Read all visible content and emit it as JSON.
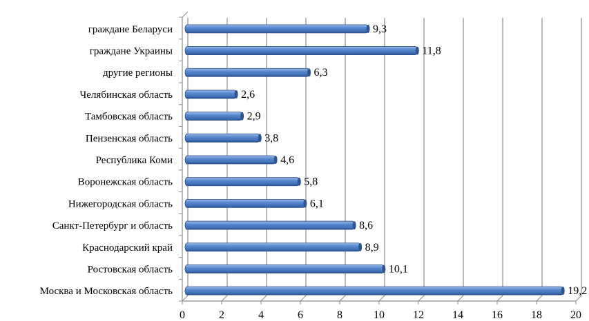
{
  "chart_data": {
    "type": "bar",
    "orientation": "horizontal",
    "title": "",
    "xlabel": "",
    "ylabel": "",
    "categories": [
      "граждане Беларуси",
      "граждане Украины",
      "другие регионы",
      "Челябинская область",
      "Тамбовская область",
      "Пензенская область",
      "Республика Коми",
      "Воронежская область",
      "Нижегородская область",
      "Санкт-Петербург и область",
      "Краснодарский край",
      "Ростовская область",
      "Москва и Московская область"
    ],
    "values": [
      9.3,
      11.8,
      6.3,
      2.6,
      2.9,
      3.8,
      4.6,
      5.8,
      6.1,
      8.6,
      8.9,
      10.1,
      19.2
    ],
    "value_labels": [
      "9,3",
      "11,8",
      "6,3",
      "2,6",
      "2,9",
      "3,8",
      "4,6",
      "5,8",
      "6,1",
      "8,6",
      "8,9",
      "10,1",
      "19,2"
    ],
    "xlim": [
      0,
      20
    ],
    "xticks": [
      "0",
      "2",
      "4",
      "6",
      "8",
      "10",
      "12",
      "14",
      "16",
      "18",
      "20"
    ],
    "grid": true,
    "legend": "none",
    "bar_color": "#4F81BD"
  }
}
